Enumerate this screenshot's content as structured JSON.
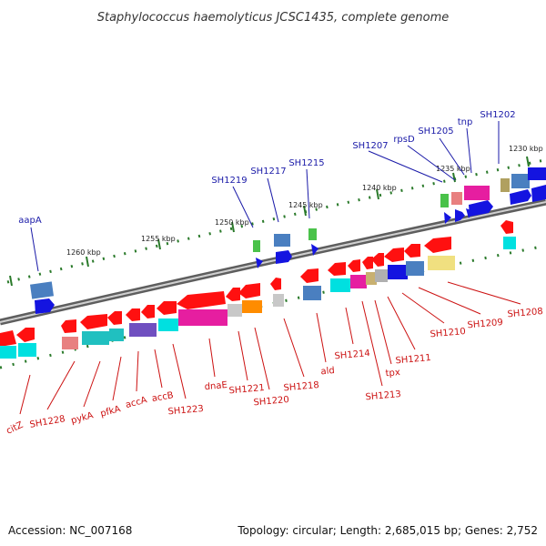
{
  "title": "Staphylococcus haemolyticus JCSC1435, complete genome",
  "footer": {
    "accession": "Accession: NC_007168",
    "topology": "Topology: circular; Length: 2,685,015 bp; Genes: 2,752"
  },
  "scale": [
    "1230 kbp",
    "1235 kbp",
    "1240 kbp",
    "1245 kbp",
    "1250 kbp",
    "1255 kbp",
    "1260 kbp"
  ],
  "top_labels": [
    "aapA",
    "SH1219",
    "SH1217",
    "SH1215",
    "SH1207",
    "rpsD",
    "SH1205",
    "tnp",
    "SH1202"
  ],
  "bottom_labels": [
    "citZ",
    "SH1228",
    "pykA",
    "pfkA",
    "accA",
    "accB",
    "SH1223",
    "dnaE",
    "SH1221",
    "SH1220",
    "SH1218",
    "ald",
    "SH1214",
    "SH1213",
    "tpx",
    "SH1211",
    "SH1210",
    "SH1209",
    "SH1208"
  ],
  "colors": {
    "forward_label": "#1a1aa8",
    "reverse_label": "#cc1111",
    "backbone": "#8a8a8a",
    "tick": "#2a7a2a"
  }
}
